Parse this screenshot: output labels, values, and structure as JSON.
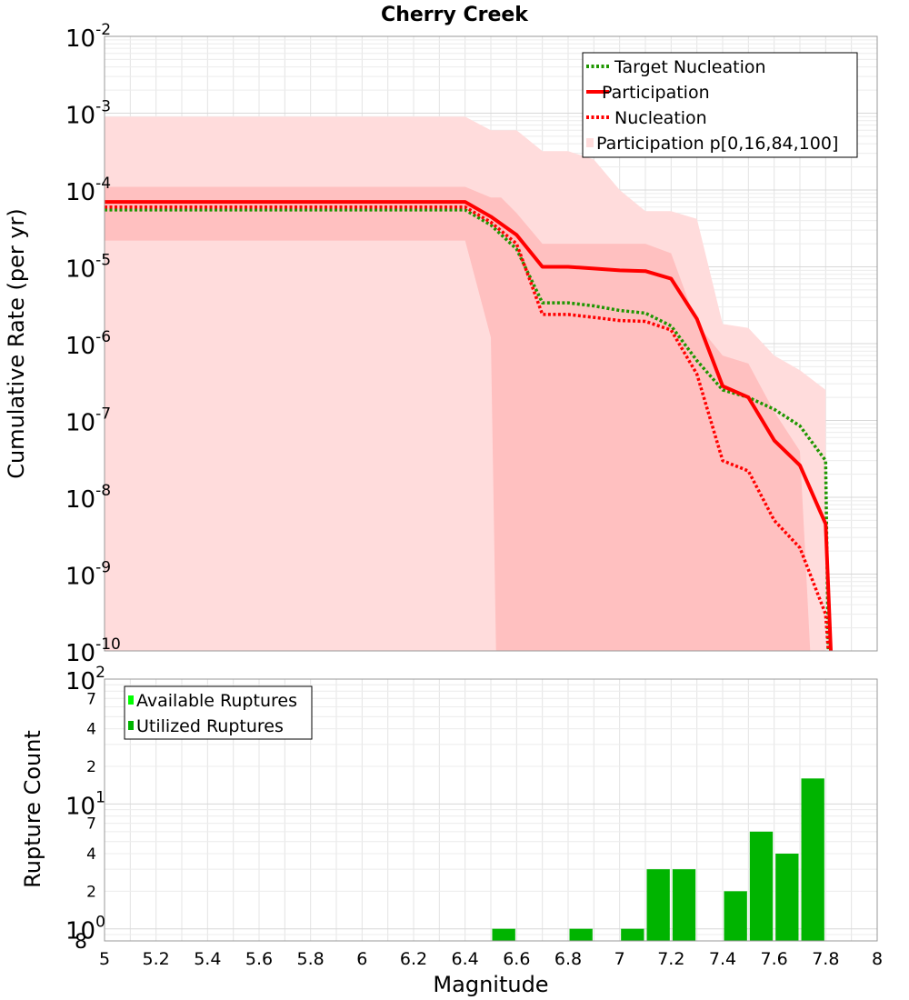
{
  "chart_data": [
    {
      "type": "line",
      "title": "Cherry Creek",
      "xlabel": "",
      "ylabel": "Cumulative Rate (per yr)",
      "xlim": [
        5,
        8
      ],
      "ylim": [
        1e-10,
        0.01
      ],
      "yscale": "log",
      "grid": true,
      "legend_position": "top-right",
      "legend": [
        "Target Nucleation",
        "Participation",
        "Nucleation",
        "Participation p[0,16,84,100]"
      ],
      "y_tick_labels": [
        {
          "value": 0.01,
          "base": "10",
          "exp": "-2"
        },
        {
          "value": 0.001,
          "base": "10",
          "exp": "-3"
        },
        {
          "value": 0.0001,
          "base": "10",
          "exp": "-4"
        },
        {
          "value": 1e-05,
          "base": "10",
          "exp": "-5"
        },
        {
          "value": 1e-06,
          "base": "10",
          "exp": "-6"
        },
        {
          "value": 1e-07,
          "base": "10",
          "exp": "-7"
        },
        {
          "value": 1e-08,
          "base": "10",
          "exp": "-8"
        },
        {
          "value": 1e-09,
          "base": "10",
          "exp": "-9"
        },
        {
          "value": 1e-10,
          "base": "10",
          "exp": "-10"
        }
      ],
      "series": [
        {
          "name": "Target Nucleation",
          "color": "#1e9600",
          "style": "dotted",
          "x": [
            5.0,
            6.4,
            6.5,
            6.6,
            6.7,
            6.8,
            6.9,
            7.0,
            7.1,
            7.2,
            7.3,
            7.4,
            7.5,
            7.6,
            7.7,
            7.8,
            7.81
          ],
          "y": [
            5.5e-05,
            5.5e-05,
            3.5e-05,
            1.7e-05,
            3.4e-06,
            3.4e-06,
            3.1e-06,
            2.7e-06,
            2.5e-06,
            1.7e-06,
            6e-07,
            2.5e-07,
            2e-07,
            1.4e-07,
            8.5e-08,
            3e-08,
            1e-10
          ]
        },
        {
          "name": "Participation",
          "color": "#ff0000",
          "style": "solid",
          "x": [
            5.0,
            6.4,
            6.5,
            6.6,
            6.7,
            6.8,
            6.9,
            7.0,
            7.1,
            7.2,
            7.3,
            7.4,
            7.5,
            7.6,
            7.7,
            7.8,
            7.82
          ],
          "y": [
            7e-05,
            7e-05,
            4.5e-05,
            2.6e-05,
            1e-05,
            1e-05,
            9.5e-06,
            9e-06,
            8.8e-06,
            7e-06,
            2.1e-06,
            2.8e-07,
            2e-07,
            5.5e-08,
            2.6e-08,
            4.5e-09,
            1e-10
          ]
        },
        {
          "name": "Nucleation",
          "color": "#ff0000",
          "style": "dotted",
          "x": [
            5.0,
            6.4,
            6.5,
            6.6,
            6.7,
            6.8,
            6.9,
            7.0,
            7.1,
            7.2,
            7.3,
            7.4,
            7.5,
            7.6,
            7.7,
            7.8,
            7.81
          ],
          "y": [
            6e-05,
            6e-05,
            3.8e-05,
            2e-05,
            2.4e-06,
            2.4e-06,
            2.2e-06,
            2e-06,
            1.95e-06,
            1.5e-06,
            4e-07,
            3e-08,
            2.2e-08,
            5e-09,
            2.2e-09,
            3e-10,
            1e-10
          ]
        }
      ],
      "bands": [
        {
          "name": "Participation p[0,16,84,100]",
          "range": "p0-p100",
          "color": "#ffdcdc",
          "x": [
            5.0,
            6.4,
            6.5,
            6.6,
            6.7,
            6.8,
            6.9,
            7.0,
            7.1,
            7.2,
            7.3,
            7.4,
            7.5,
            7.6,
            7.7,
            7.8
          ],
          "upper": [
            0.0009,
            0.0009,
            0.0006,
            0.0006,
            0.00032,
            0.00032,
            0.00025,
            0.0001,
            5.3e-05,
            5.3e-05,
            4.2e-05,
            1.8e-06,
            1.6e-06,
            7e-07,
            4.5e-07,
            2.5e-07
          ],
          "lower": [
            1e-10,
            1e-10,
            1e-10,
            1e-10,
            1e-10,
            1e-10,
            1e-10,
            1e-10,
            1e-10,
            1e-10,
            1e-10,
            1e-10,
            1e-10,
            1e-10,
            1e-10,
            1e-10
          ]
        },
        {
          "name": "p16-p84",
          "range": "p16-p84",
          "color": "#ffc0c0",
          "x": [
            5.0,
            6.4,
            6.5,
            6.52,
            6.54,
            6.6,
            6.7,
            6.8,
            6.9,
            7.0,
            7.1,
            7.2,
            7.3,
            7.4,
            7.5,
            7.6,
            7.7,
            7.72,
            7.74
          ],
          "upper": [
            0.00011,
            0.00011,
            8e-05,
            8e-05,
            8e-05,
            5e-05,
            2e-05,
            2e-05,
            2e-05,
            2e-05,
            2e-05,
            1.5e-05,
            1.8e-06,
            7e-07,
            5.5e-07,
            1.3e-07,
            4e-08,
            2e-09,
            1e-10
          ],
          "lower": [
            2.2e-05,
            2.2e-05,
            1.2e-06,
            1e-10,
            1e-10,
            1e-10,
            1e-10,
            1e-10,
            1e-10,
            1e-10,
            1e-10,
            1e-10,
            1e-10,
            1e-10,
            1e-10,
            1e-10,
            1e-10,
            1e-10,
            1e-10
          ]
        }
      ]
    },
    {
      "type": "bar",
      "title": "",
      "xlabel": "Magnitude",
      "ylabel": "Rupture Count",
      "xlim": [
        5,
        8
      ],
      "ylim": [
        0.8,
        100
      ],
      "yscale": "log",
      "grid": true,
      "legend_position": "top-left",
      "legend": [
        "Available Ruptures",
        "Utilized Ruptures"
      ],
      "x_tick_labels": [
        "5",
        "5.2",
        "5.4",
        "5.6",
        "5.8",
        "6",
        "6.2",
        "6.4",
        "6.6",
        "6.8",
        "7",
        "7.2",
        "7.4",
        "7.6",
        "7.8",
        "8"
      ],
      "y_tick_labels": [
        {
          "value": 100,
          "base": "10",
          "exp": "2"
        },
        {
          "value": 10,
          "base": "10",
          "exp": "1"
        },
        {
          "value": 1,
          "base": "10",
          "exp": "0"
        }
      ],
      "y_minor_labels": [
        {
          "value": 70,
          "label": "7"
        },
        {
          "value": 40,
          "label": "4"
        },
        {
          "value": 20,
          "label": "2"
        },
        {
          "value": 7,
          "label": "7"
        },
        {
          "value": 4,
          "label": "4"
        },
        {
          "value": 2,
          "label": "2"
        },
        {
          "value": 0.8,
          "label": "8"
        }
      ],
      "series": [
        {
          "name": "Available Ruptures",
          "color": "#00ff00",
          "bins": [],
          "values": []
        },
        {
          "name": "Utilized Ruptures",
          "color": "#00b400",
          "bins": [
            6.55,
            6.85,
            7.05,
            7.15,
            7.25,
            7.45,
            7.55,
            7.65,
            7.75
          ],
          "values": [
            1,
            1,
            1,
            3,
            3,
            2,
            6,
            4,
            16
          ]
        }
      ],
      "bin_width": 0.1
    }
  ]
}
